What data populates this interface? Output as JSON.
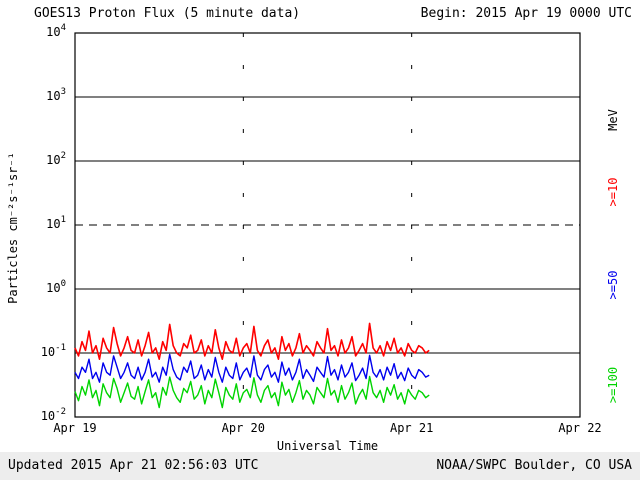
{
  "header": {
    "title": "GOES13 Proton Flux (5 minute data)",
    "begin_label": "Begin: 2015 Apr 19 0000 UTC"
  },
  "footer": {
    "updated": "Updated 2015 Apr 21 02:56:03 UTC",
    "source": "NOAA/SWPC Boulder, CO USA"
  },
  "chart_data": {
    "type": "line",
    "title": "GOES13 Proton Flux (5 minute data)",
    "xlabel": "Universal Time",
    "ylabel": "Particles cm⁻²s⁻¹sr⁻¹",
    "right_axis_label": "MeV",
    "y_scale": "log",
    "ylim_exponents": [
      -2,
      4
    ],
    "y_tick_exponents": [
      4,
      3,
      2,
      1,
      0,
      -1,
      -2
    ],
    "x_range_days": 3,
    "x_start_label": "2015 Apr 19 0000 UTC",
    "x_tick_labels": [
      "Apr 19",
      "Apr 20",
      "Apr 21",
      "Apr 22"
    ],
    "grid": {
      "horizontal_solid_exponents": [
        3,
        2,
        0,
        -1
      ],
      "horizontal_dashed_exponents": [
        1
      ],
      "vertical_day_lines": [
        1,
        2
      ]
    },
    "series": [
      {
        "name": ">=10",
        "unit": "MeV",
        "color": "#ff0000",
        "x_start_hours": 0,
        "x_step_hours": 0.5,
        "values": [
          0.12,
          0.09,
          0.15,
          0.11,
          0.22,
          0.1,
          0.13,
          0.08,
          0.17,
          0.12,
          0.1,
          0.25,
          0.14,
          0.09,
          0.12,
          0.18,
          0.11,
          0.1,
          0.16,
          0.09,
          0.13,
          0.21,
          0.1,
          0.12,
          0.08,
          0.15,
          0.11,
          0.28,
          0.13,
          0.1,
          0.09,
          0.14,
          0.12,
          0.19,
          0.1,
          0.11,
          0.16,
          0.09,
          0.13,
          0.1,
          0.23,
          0.12,
          0.08,
          0.15,
          0.11,
          0.1,
          0.17,
          0.09,
          0.12,
          0.14,
          0.1,
          0.26,
          0.11,
          0.09,
          0.13,
          0.16,
          0.1,
          0.12,
          0.08,
          0.18,
          0.11,
          0.14,
          0.09,
          0.12,
          0.2,
          0.1,
          0.13,
          0.11,
          0.09,
          0.15,
          0.12,
          0.1,
          0.24,
          0.11,
          0.13,
          0.09,
          0.16,
          0.1,
          0.12,
          0.18,
          0.09,
          0.11,
          0.14,
          0.1,
          0.29,
          0.12,
          0.1,
          0.13,
          0.09,
          0.15,
          0.11,
          0.17,
          0.1,
          0.12,
          0.09,
          0.14,
          0.11,
          0.1,
          0.13,
          0.12,
          0.1,
          0.11
        ]
      },
      {
        "name": ">=50",
        "unit": "MeV",
        "color": "#0000ee",
        "x_start_hours": 0,
        "x_step_hours": 0.5,
        "values": [
          0.05,
          0.04,
          0.06,
          0.05,
          0.08,
          0.04,
          0.05,
          0.035,
          0.07,
          0.05,
          0.045,
          0.09,
          0.06,
          0.04,
          0.05,
          0.07,
          0.045,
          0.04,
          0.06,
          0.038,
          0.05,
          0.08,
          0.042,
          0.05,
          0.035,
          0.06,
          0.045,
          0.095,
          0.055,
          0.042,
          0.038,
          0.06,
          0.05,
          0.075,
          0.04,
          0.045,
          0.065,
          0.038,
          0.055,
          0.042,
          0.085,
          0.05,
          0.035,
          0.06,
          0.045,
          0.04,
          0.07,
          0.038,
          0.05,
          0.058,
          0.042,
          0.09,
          0.045,
          0.038,
          0.055,
          0.065,
          0.042,
          0.05,
          0.035,
          0.072,
          0.045,
          0.058,
          0.038,
          0.05,
          0.08,
          0.04,
          0.055,
          0.045,
          0.036,
          0.06,
          0.05,
          0.042,
          0.088,
          0.045,
          0.055,
          0.038,
          0.065,
          0.042,
          0.05,
          0.07,
          0.037,
          0.045,
          0.058,
          0.04,
          0.092,
          0.05,
          0.042,
          0.055,
          0.038,
          0.06,
          0.045,
          0.068,
          0.04,
          0.05,
          0.037,
          0.058,
          0.045,
          0.04,
          0.055,
          0.05,
          0.042,
          0.045
        ]
      },
      {
        "name": ">=100",
        "unit": "MeV",
        "color": "#00d400",
        "x_start_hours": 0,
        "x_step_hours": 0.5,
        "values": [
          0.025,
          0.018,
          0.03,
          0.022,
          0.038,
          0.02,
          0.026,
          0.015,
          0.033,
          0.024,
          0.02,
          0.04,
          0.028,
          0.017,
          0.024,
          0.034,
          0.021,
          0.019,
          0.03,
          0.016,
          0.025,
          0.038,
          0.02,
          0.024,
          0.014,
          0.029,
          0.022,
          0.042,
          0.026,
          0.02,
          0.017,
          0.028,
          0.024,
          0.036,
          0.019,
          0.022,
          0.031,
          0.016,
          0.026,
          0.02,
          0.039,
          0.024,
          0.014,
          0.029,
          0.022,
          0.019,
          0.033,
          0.017,
          0.024,
          0.027,
          0.02,
          0.041,
          0.022,
          0.017,
          0.026,
          0.031,
          0.02,
          0.024,
          0.015,
          0.035,
          0.022,
          0.027,
          0.017,
          0.024,
          0.037,
          0.019,
          0.026,
          0.022,
          0.016,
          0.029,
          0.024,
          0.02,
          0.04,
          0.022,
          0.026,
          0.017,
          0.031,
          0.019,
          0.024,
          0.034,
          0.016,
          0.022,
          0.027,
          0.019,
          0.043,
          0.024,
          0.02,
          0.026,
          0.017,
          0.029,
          0.022,
          0.032,
          0.019,
          0.024,
          0.016,
          0.027,
          0.022,
          0.019,
          0.026,
          0.024,
          0.02,
          0.022
        ]
      }
    ]
  }
}
